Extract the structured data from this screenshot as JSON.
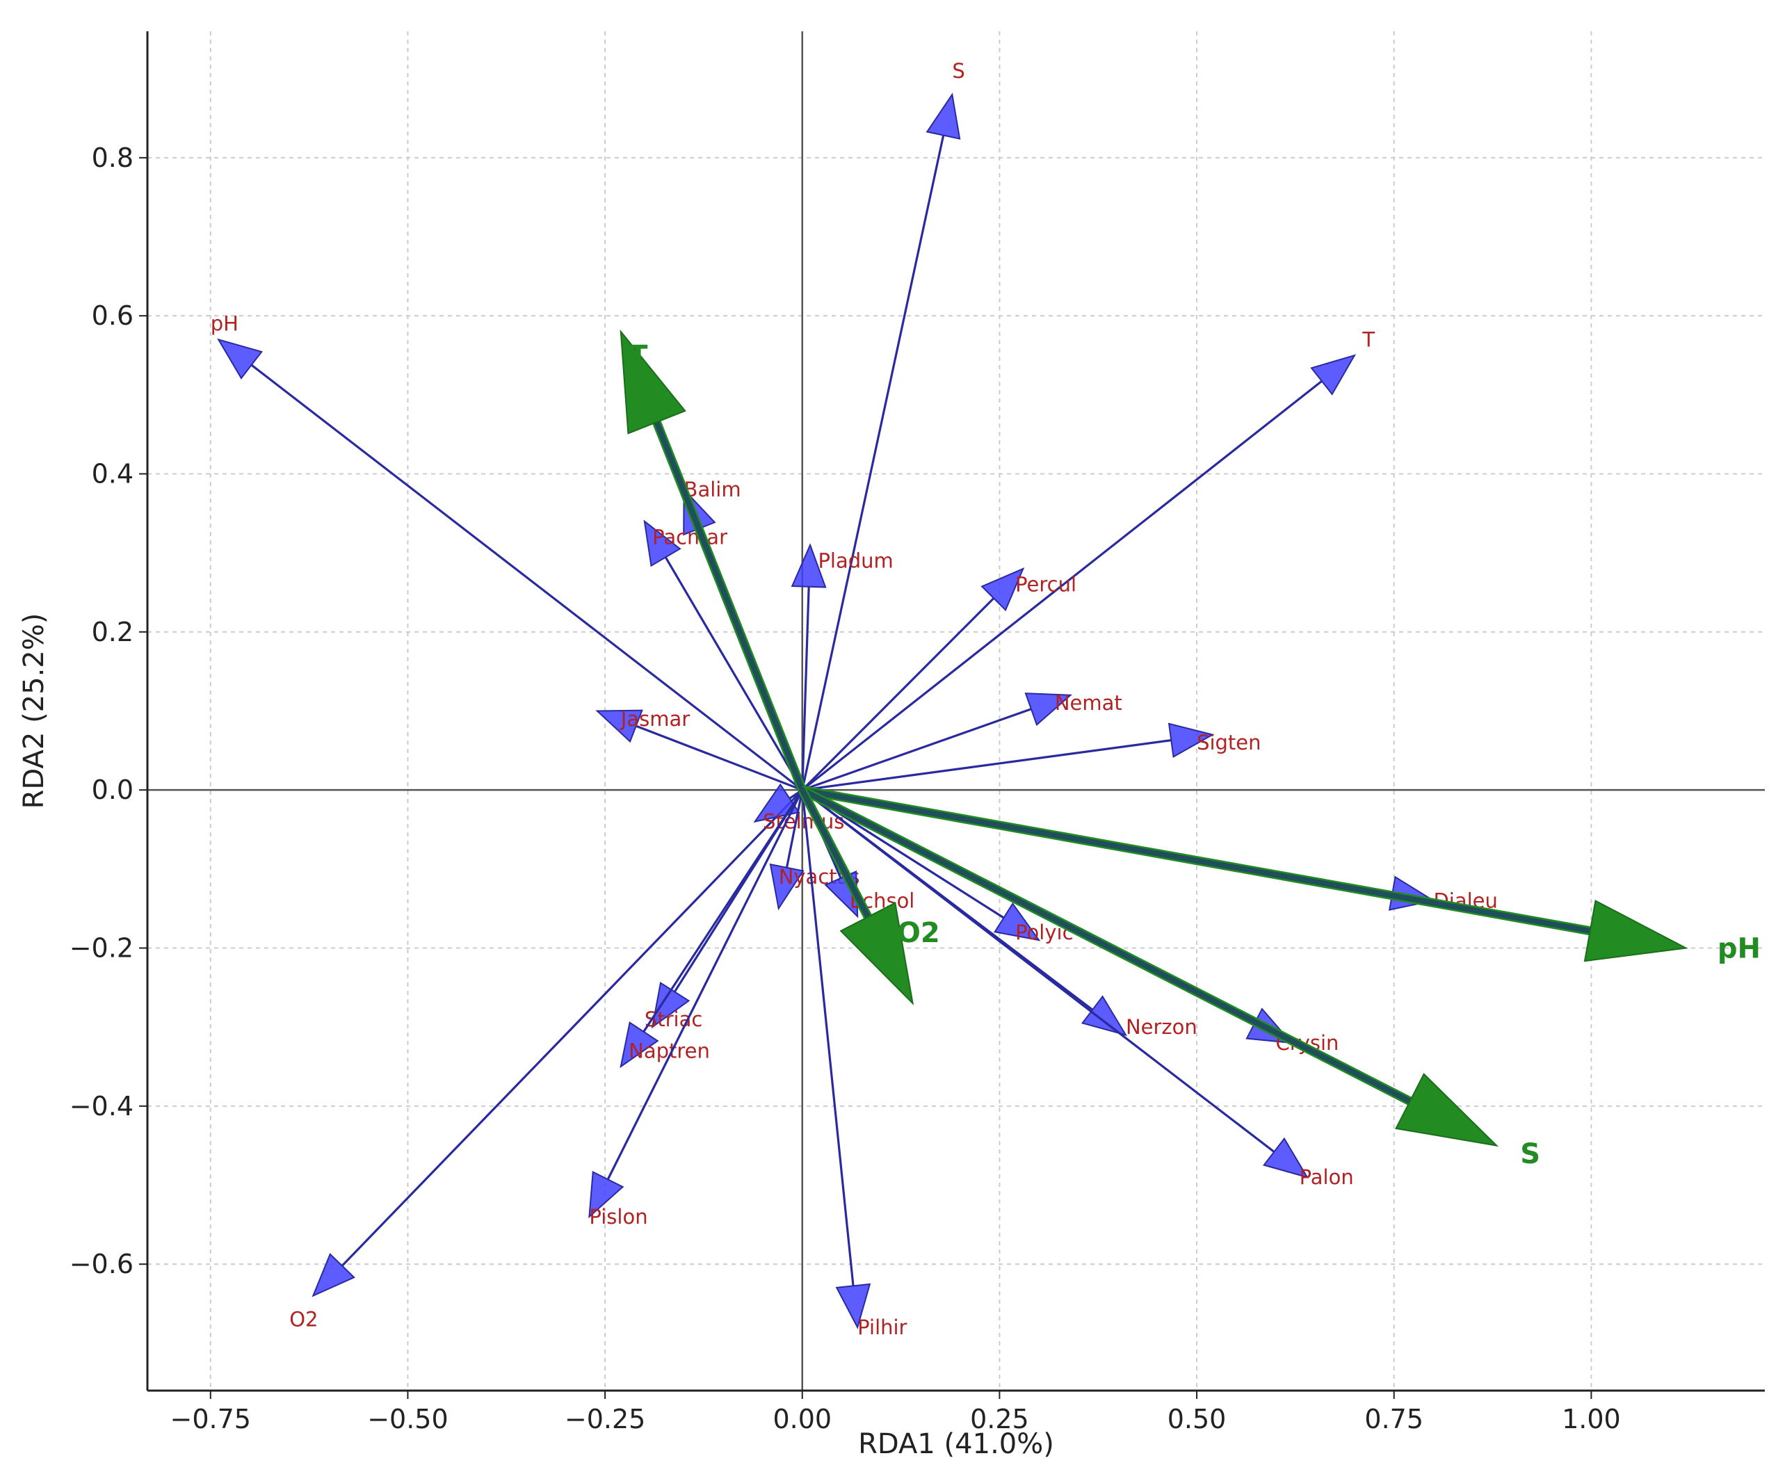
{
  "chart_data": {
    "type": "scatter",
    "xlabel": "RDA1 (41.0%)",
    "ylabel": "RDA2 (25.2%)",
    "xlim": [
      -0.83,
      1.22
    ],
    "ylim": [
      -0.76,
      0.96
    ],
    "xticks": [
      -0.75,
      -0.5,
      -0.25,
      0.0,
      0.25,
      0.5,
      0.75,
      1.0
    ],
    "xtick_labels": [
      "−0.75",
      "−0.50",
      "−0.25",
      "0.00",
      "0.25",
      "0.50",
      "0.75",
      "1.00"
    ],
    "yticks": [
      -0.6,
      -0.4,
      -0.2,
      0.0,
      0.2,
      0.4,
      0.6,
      0.8
    ],
    "ytick_labels": [
      "−0.6",
      "−0.4",
      "−0.2",
      "0.0",
      "0.2",
      "0.4",
      "0.6",
      "0.8"
    ],
    "grid": true,
    "colors": {
      "species": "#3333ff",
      "species_label": "#b22222",
      "env": "#228b22",
      "env_shaft": "#1e4f5a"
    },
    "species_arrows": [
      {
        "label": "S",
        "x": 0.19,
        "y": 0.88,
        "lx": 0.19,
        "ly": 0.91
      },
      {
        "label": "T",
        "x": 0.7,
        "y": 0.55,
        "lx": 0.71,
        "ly": 0.57
      },
      {
        "label": "pH",
        "x": -0.74,
        "y": 0.57,
        "lx": -0.75,
        "ly": 0.59
      },
      {
        "label": "O2",
        "x": -0.62,
        "y": -0.64,
        "lx": -0.65,
        "ly": -0.67
      },
      {
        "label": "Balim",
        "x": -0.15,
        "y": 0.38,
        "lx": -0.15,
        "ly": 0.38
      },
      {
        "label": "Pacmar",
        "x": -0.2,
        "y": 0.34,
        "lx": -0.19,
        "ly": 0.32
      },
      {
        "label": "Pladum",
        "x": 0.01,
        "y": 0.31,
        "lx": 0.02,
        "ly": 0.29
      },
      {
        "label": "Percul",
        "x": 0.28,
        "y": 0.28,
        "lx": 0.27,
        "ly": 0.26
      },
      {
        "label": "Jasmar",
        "x": -0.26,
        "y": 0.1,
        "lx": -0.23,
        "ly": 0.09
      },
      {
        "label": "Nemat",
        "x": 0.34,
        "y": 0.12,
        "lx": 0.32,
        "ly": 0.11
      },
      {
        "label": "Sigten",
        "x": 0.52,
        "y": 0.07,
        "lx": 0.5,
        "ly": 0.06
      },
      {
        "label": "Stelmus",
        "x": -0.06,
        "y": -0.04,
        "lx": -0.05,
        "ly": -0.04
      },
      {
        "label": "Nyactas",
        "x": -0.03,
        "y": -0.15,
        "lx": -0.03,
        "ly": -0.11
      },
      {
        "label": "Echsol",
        "x": 0.07,
        "y": -0.16,
        "lx": 0.06,
        "ly": -0.14
      },
      {
        "label": "Polyic",
        "x": 0.3,
        "y": -0.19,
        "lx": 0.27,
        "ly": -0.18
      },
      {
        "label": "Striac",
        "x": -0.19,
        "y": -0.3,
        "lx": -0.2,
        "ly": -0.29
      },
      {
        "label": "Naptren",
        "x": -0.23,
        "y": -0.35,
        "lx": -0.22,
        "ly": -0.33
      },
      {
        "label": "Nerzon",
        "x": 0.41,
        "y": -0.31,
        "lx": 0.41,
        "ly": -0.3
      },
      {
        "label": "Crysin",
        "x": 0.62,
        "y": -0.32,
        "lx": 0.6,
        "ly": -0.32
      },
      {
        "label": "Dialeu",
        "x": 0.8,
        "y": -0.14,
        "lx": 0.8,
        "ly": -0.14
      },
      {
        "label": "Palon",
        "x": 0.64,
        "y": -0.49,
        "lx": 0.63,
        "ly": -0.49
      },
      {
        "label": "Pislon",
        "x": -0.27,
        "y": -0.54,
        "lx": -0.27,
        "ly": -0.54
      },
      {
        "label": "Pilhir",
        "x": 0.07,
        "y": -0.68,
        "lx": 0.07,
        "ly": -0.68
      }
    ],
    "env_arrows": [
      {
        "label": "T",
        "x": -0.23,
        "y": 0.58,
        "lx": -0.22,
        "ly": 0.55
      },
      {
        "label": "pH",
        "x": 1.12,
        "y": -0.2,
        "lx": 1.16,
        "ly": -0.2
      },
      {
        "label": "S",
        "x": 0.88,
        "y": -0.45,
        "lx": 0.91,
        "ly": -0.46
      },
      {
        "label": "O2",
        "x": 0.14,
        "y": -0.27,
        "lx": 0.12,
        "ly": -0.18
      }
    ]
  }
}
